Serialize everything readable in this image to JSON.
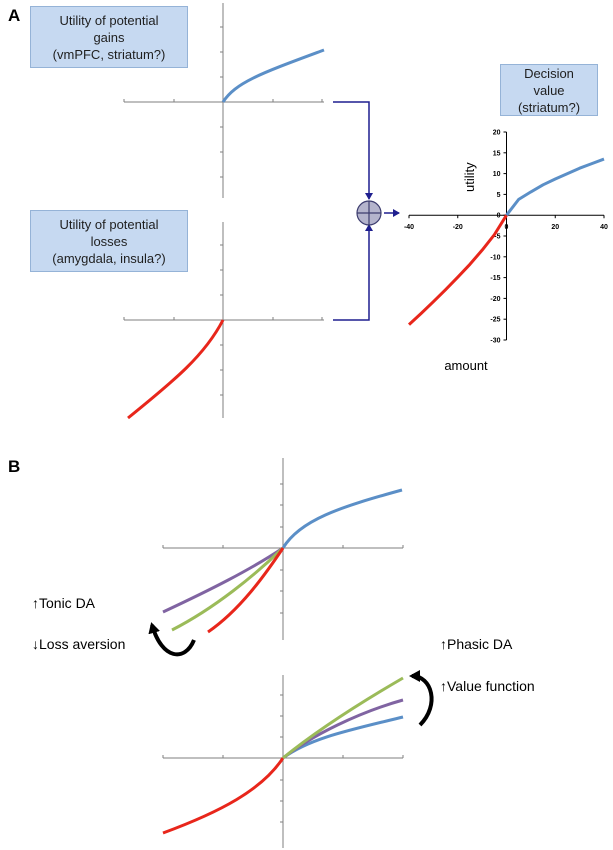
{
  "panel_a": {
    "letter": "A",
    "gains_box": [
      "Utility of potential",
      "gains",
      "(vmPFC, striatum?)"
    ],
    "losses_box": [
      "Utility of potential",
      "losses",
      "(amygdala, insula?)"
    ],
    "decision_box": [
      "Decision",
      "value",
      "(striatum?)"
    ],
    "chart": {
      "ylabel": "utility",
      "xlabel": "amount",
      "x_ticks": [
        "-40",
        "-20",
        "0",
        "20",
        "40"
      ],
      "y_ticks": [
        "20",
        "15",
        "10",
        "5",
        "0",
        "-5",
        "-10",
        "-15",
        "-20",
        "-25",
        "-30"
      ]
    }
  },
  "panel_b": {
    "letter": "B",
    "tonic_da": "Tonic DA",
    "loss_aversion": "Loss aversion",
    "phasic_da": "Phasic DA",
    "value_function": "Value function"
  },
  "colors": {
    "blue": "#5b8fc7",
    "red": "#e8261b",
    "green": "#9bbb59",
    "purple": "#8064a2",
    "navy": "#1f1f8f",
    "box_fill": "#c6d9f1"
  },
  "chart_data": {
    "type": "line",
    "title": "",
    "xlabel": "amount",
    "ylabel": "utility",
    "xlim": [
      -40,
      40
    ],
    "ylim": [
      -30,
      20
    ],
    "series": [
      {
        "x": [
          0,
          5,
          10,
          15,
          20,
          25,
          30,
          35,
          40
        ],
        "y": [
          0,
          3.8,
          5.6,
          7.3,
          8.7,
          10.0,
          11.3,
          12.4,
          13.5
        ]
      },
      {
        "x": [
          -40,
          -35,
          -30,
          -25,
          -20,
          -15,
          -10,
          -5,
          0
        ],
        "y": [
          -26.3,
          -23.6,
          -20.8,
          -17.9,
          -14.9,
          -11.8,
          -8.4,
          -4.7,
          0
        ]
      }
    ]
  }
}
